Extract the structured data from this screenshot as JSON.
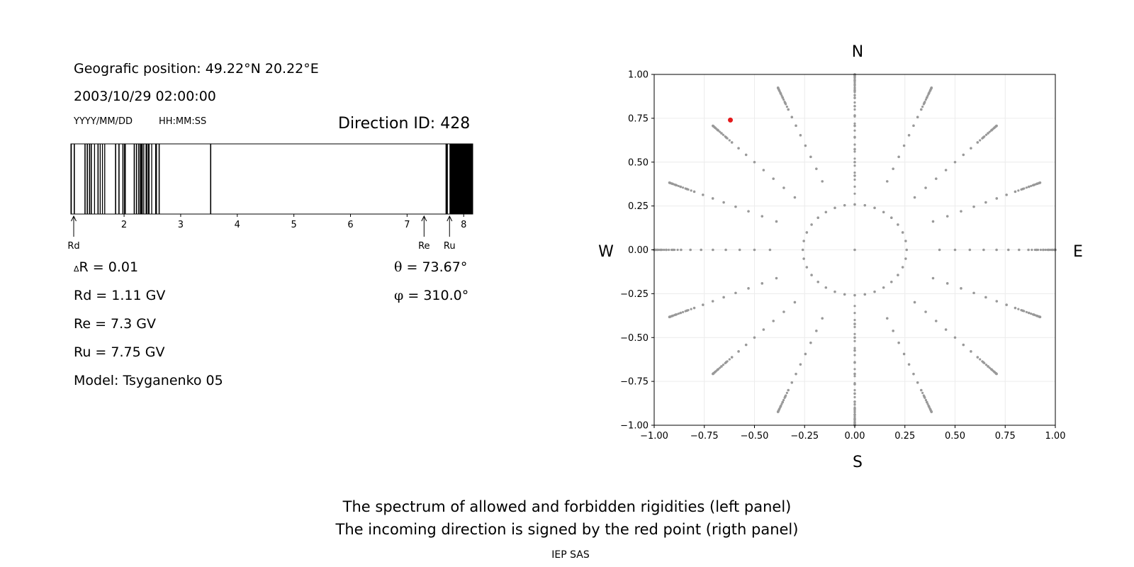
{
  "left_panel": {
    "position_line": "Geografic position: 49.22°N 20.22°E",
    "datetime": "2003/10/29 02:00:00",
    "date_format": "YYYY/MM/DD",
    "time_format": "HH:MM:SS",
    "direction_id": "Direction ID: 428",
    "delta_r_symbol": "Δ",
    "delta_r": "R = 0.01",
    "theta_symbol": "θ",
    "theta": "= 73.67°",
    "phi_symbol": "φ",
    "phi": "= 310.0°",
    "rd": "Rd = 1.11 GV",
    "re": "Re = 7.3 GV",
    "ru": "Ru = 7.75 GV",
    "model": "Model: Tsyganenko 05"
  },
  "caption": {
    "line1": "The spectrum of allowed and forbidden rigidities (left panel)",
    "line2": "The incoming direction is signed by the red point (rigth panel)",
    "footer": "IEP SAS"
  },
  "chart_data": [
    {
      "type": "spectrum-bar",
      "title": "",
      "xlim": [
        1.06,
        8.16
      ],
      "x_ticks": [
        2,
        3,
        4,
        5,
        6,
        7,
        8
      ],
      "forbidden_intervals": [
        [
          1.06,
          1.07
        ],
        [
          1.11,
          1.13
        ],
        [
          1.3,
          1.32
        ],
        [
          1.34,
          1.36
        ],
        [
          1.38,
          1.4
        ],
        [
          1.41,
          1.43
        ],
        [
          1.47,
          1.48
        ],
        [
          1.53,
          1.55
        ],
        [
          1.57,
          1.58
        ],
        [
          1.61,
          1.62
        ],
        [
          1.65,
          1.66
        ],
        [
          1.84,
          1.86
        ],
        [
          1.9,
          1.92
        ],
        [
          1.97,
          1.99
        ],
        [
          2.0,
          2.03
        ],
        [
          2.17,
          2.19
        ],
        [
          2.21,
          2.23
        ],
        [
          2.25,
          2.27
        ],
        [
          2.28,
          2.33
        ],
        [
          2.34,
          2.35
        ],
        [
          2.38,
          2.41
        ],
        [
          2.42,
          2.45
        ],
        [
          2.48,
          2.49
        ],
        [
          2.55,
          2.58
        ],
        [
          2.61,
          2.63
        ],
        [
          3.52,
          3.54
        ],
        [
          7.68,
          7.72
        ],
        [
          7.75,
          8.16
        ]
      ],
      "markers": [
        {
          "label": "Rd",
          "value": 1.11
        },
        {
          "label": "Re",
          "value": 7.3
        },
        {
          "label": "Ru",
          "value": 7.75
        }
      ]
    },
    {
      "type": "scatter",
      "title": "",
      "xlim": [
        -1.0,
        1.0
      ],
      "ylim": [
        -1.0,
        1.0
      ],
      "x_ticks": [
        "−1.00",
        "−0.75",
        "−0.50",
        "−0.25",
        "0.00",
        "0.25",
        "0.50",
        "0.75",
        "1.00"
      ],
      "y_ticks": [
        "1.00",
        "0.75",
        "0.50",
        "0.25",
        "0.00",
        "−0.25",
        "−0.50",
        "−0.75",
        "−1.00"
      ],
      "grid": true,
      "directions": {
        "north": "N",
        "south": "S",
        "west": "W",
        "east": "E"
      },
      "grid_points": {
        "zenith_angles_deg": [
          0,
          15,
          25,
          30,
          35,
          40,
          45,
          50,
          55,
          60,
          65,
          70,
          75,
          80,
          85,
          90
        ],
        "azimuth_step_deg": 22.5,
        "color": "#999999"
      },
      "highlight": {
        "theta_deg": 73.67,
        "phi_deg": 310.0,
        "x": -0.62,
        "y": 0.74,
        "color": "#e41a1c"
      }
    }
  ]
}
